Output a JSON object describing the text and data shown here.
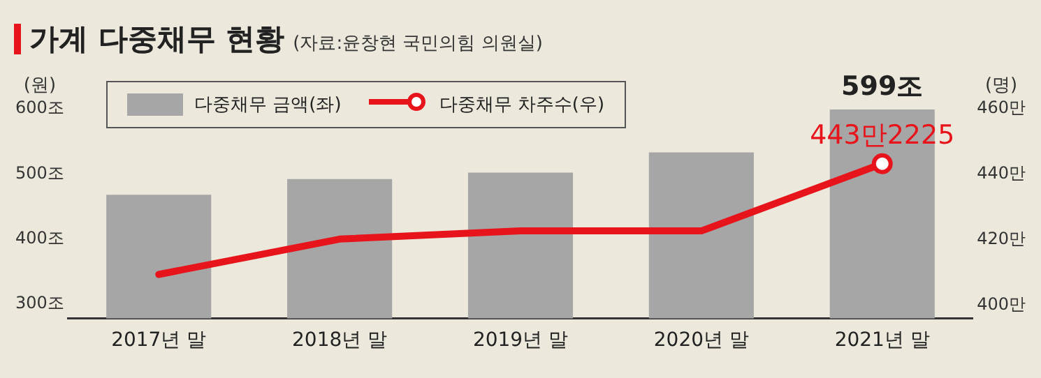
{
  "chart_data": {
    "type": "bar",
    "title": "가계 다중채무 현황",
    "subtitle": "(자료:윤창현 국민의힘 의원실)",
    "ylabel": "(원)",
    "y2label": "(명)",
    "categories": [
      "2017년 말",
      "2018년 말",
      "2019년 말",
      "2020년 말",
      "2021년 말"
    ],
    "series": [
      {
        "name": "다중채무 금액(좌)",
        "color": "#a6a6a6",
        "values": [
          468,
          492,
          502,
          533,
          599
        ],
        "value_labels": [
          null,
          null,
          null,
          null,
          "599조"
        ]
      },
      {
        "name": "다중채무 차주수(우)",
        "type": "line",
        "axis": "y2",
        "color": "#e8141c",
        "values": [
          409.4,
          420.2,
          422.7,
          422.7,
          443.2225
        ],
        "value_labels": [
          null,
          null,
          null,
          null,
          "443만2225"
        ]
      }
    ],
    "ylim": [
      278,
      600
    ],
    "yticks": [
      {
        "value": 300,
        "label": "300조"
      },
      {
        "value": 400,
        "label": "400조"
      },
      {
        "value": 500,
        "label": "500조"
      },
      {
        "value": 600,
        "label": "600조"
      }
    ],
    "y2lim": [
      396,
      460
    ],
    "y2ticks": [
      {
        "value": 400,
        "label": "400만"
      },
      {
        "value": 420,
        "label": "420만"
      },
      {
        "value": 440,
        "label": "440만"
      },
      {
        "value": 460,
        "label": "460만"
      }
    ],
    "grid": false,
    "legend": "top left"
  }
}
